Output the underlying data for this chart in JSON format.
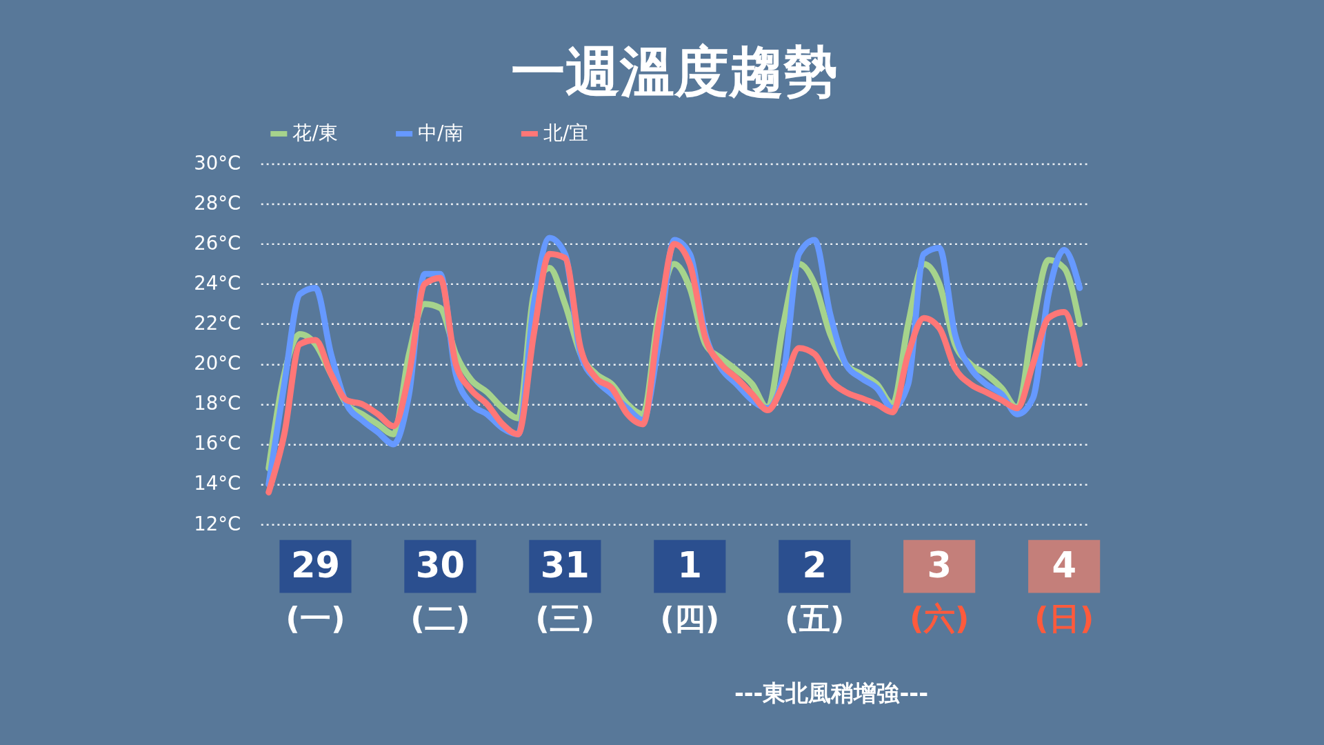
{
  "chart_data": {
    "type": "line",
    "title": "一週溫度趨勢",
    "categories": [
      null,
      null,
      null,
      "29 (一)",
      null,
      null,
      null,
      null,
      null,
      null,
      null,
      "30 (二)",
      null,
      null,
      null,
      null,
      null,
      null,
      null,
      "31 (三)",
      null,
      null,
      null,
      null,
      null,
      null,
      null,
      "1 (四)",
      null,
      null,
      null,
      null,
      null,
      null,
      null,
      "2 (五)",
      null,
      null,
      null,
      null,
      null,
      null,
      null,
      "3 (六)",
      null,
      null,
      null,
      null,
      null,
      null,
      null,
      "4 (日)",
      null
    ],
    "series": [
      {
        "name": "花/東",
        "color": "#a6d38c",
        "values": [
          14.8,
          19.5,
          21.5,
          21.0,
          19.5,
          18.0,
          17.5,
          17.0,
          16.5,
          20.5,
          23.0,
          22.8,
          20.5,
          19.2,
          18.6,
          17.8,
          17.3,
          23.5,
          24.8,
          23.0,
          20.5,
          19.5,
          19.0,
          18.0,
          17.5,
          22.5,
          25.0,
          23.8,
          21.0,
          20.3,
          19.7,
          19.0,
          17.8,
          22.0,
          25.0,
          24.0,
          21.5,
          20.0,
          19.5,
          19.0,
          18.0,
          22.0,
          25.0,
          24.0,
          21.0,
          20.0,
          19.5,
          18.8,
          17.8,
          22.0,
          25.2,
          24.8,
          22.0
        ]
      },
      {
        "name": "中/南",
        "color": "#6699ff",
        "values": [
          14.0,
          19.0,
          23.5,
          23.8,
          20.5,
          18.0,
          17.2,
          16.6,
          16.0,
          18.5,
          24.5,
          24.5,
          19.5,
          18.0,
          17.5,
          16.8,
          16.5,
          23.0,
          26.3,
          25.5,
          20.5,
          19.2,
          18.5,
          17.8,
          17.2,
          21.0,
          26.2,
          25.5,
          21.5,
          19.8,
          19.0,
          18.2,
          17.8,
          19.5,
          25.5,
          26.2,
          22.5,
          20.0,
          19.3,
          18.8,
          17.8,
          19.0,
          25.5,
          25.8,
          21.5,
          19.8,
          19.0,
          18.5,
          17.5,
          18.3,
          23.5,
          25.7,
          23.8
        ]
      },
      {
        "name": "北/宜",
        "color": "#ff7777",
        "values": [
          13.6,
          16.5,
          21.0,
          21.2,
          19.5,
          18.2,
          18.0,
          17.5,
          16.9,
          19.5,
          24.0,
          24.3,
          20.0,
          18.7,
          18.0,
          17.0,
          16.5,
          21.5,
          25.5,
          25.3,
          20.8,
          19.3,
          18.8,
          17.5,
          17.0,
          22.0,
          26.0,
          25.0,
          21.3,
          20.0,
          19.3,
          18.5,
          17.7,
          19.0,
          20.8,
          20.5,
          19.2,
          18.6,
          18.3,
          18.0,
          17.6,
          20.5,
          22.3,
          21.8,
          19.8,
          19.0,
          18.6,
          18.2,
          17.8,
          20.0,
          22.3,
          22.6,
          20.0
        ]
      }
    ],
    "ylim": [
      12,
      30
    ],
    "yticks": [
      {
        "value": 12,
        "label": "12°C"
      },
      {
        "value": 14,
        "label": "14°C"
      },
      {
        "value": 16,
        "label": "16°C"
      },
      {
        "value": 18,
        "label": "18°C"
      },
      {
        "value": 20,
        "label": "20°C"
      },
      {
        "value": 22,
        "label": "22°C"
      },
      {
        "value": 24,
        "label": "24°C"
      },
      {
        "value": 26,
        "label": "26°C"
      },
      {
        "value": 28,
        "label": "28°C"
      },
      {
        "value": 30,
        "label": "30°C"
      }
    ],
    "grid": "y",
    "legend": "top",
    "line_style": "solid",
    "annotations": [
      "---東北風稍增強---"
    ]
  }
}
